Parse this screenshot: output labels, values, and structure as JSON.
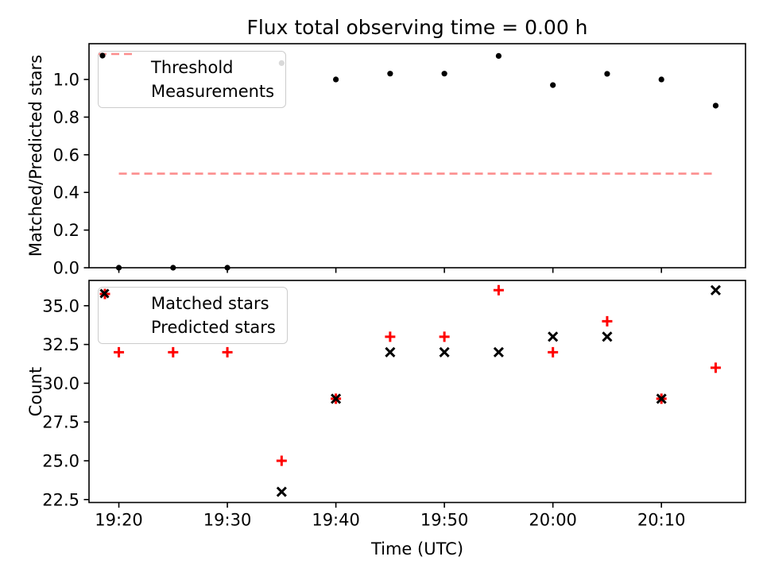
{
  "figure": {
    "background": "#ffffff",
    "accent_red": "#ff0000",
    "threshold_color": "#fc8d8d",
    "marker_black": "#000000"
  },
  "chart_data": [
    {
      "type": "scatter",
      "title": "Flux total observing time = 0.00 h",
      "xlabel": "",
      "ylabel": "Matched/Predicted stars",
      "x_tick_labels": [
        "19:20",
        "19:30",
        "19:40",
        "19:50",
        "20:00",
        "20:10"
      ],
      "x_tick_labels_visible": false,
      "y_tick_labels": [
        "0.0",
        "0.2",
        "0.4",
        "0.6",
        "0.8",
        "1.0"
      ],
      "xlim_minutes": [
        1157.25,
        1217.75
      ],
      "ylim": [
        0,
        1.19
      ],
      "grid": false,
      "legend": {
        "position": "upper left",
        "entries": [
          {
            "label": "Threshold",
            "marker": "dashed-line",
            "color": "#fc8d8d"
          },
          {
            "label": "Measurements",
            "marker": "dot",
            "color": "#000000"
          }
        ]
      },
      "series": [
        {
          "name": "Threshold",
          "style": "hline-dashed",
          "color": "#fc8d8d",
          "y": 0.5,
          "x_start": "19:20",
          "x_end": "20:15"
        },
        {
          "name": "Measurements",
          "style": "dot",
          "color": "#000000",
          "x": [
            "19:20",
            "19:25",
            "19:30",
            "19:35",
            "19:40",
            "19:45",
            "19:50",
            "19:55",
            "20:00",
            "20:05",
            "20:10",
            "20:15"
          ],
          "y": [
            0,
            0,
            0,
            1.087,
            1.0,
            1.031,
            1.031,
            1.125,
            0.97,
            1.03,
            1.0,
            0.861
          ]
        }
      ]
    },
    {
      "type": "scatter",
      "title": "",
      "xlabel": "Time (UTC)",
      "ylabel": "Count",
      "x_tick_labels": [
        "19:20",
        "19:30",
        "19:40",
        "19:50",
        "20:00",
        "20:10"
      ],
      "x_tick_labels_visible": true,
      "y_tick_labels": [
        "22.5",
        "25.0",
        "27.5",
        "30.0",
        "32.5",
        "35.0"
      ],
      "xlim_minutes": [
        1157.25,
        1217.75
      ],
      "ylim": [
        22.31,
        36.63
      ],
      "grid": false,
      "legend": {
        "position": "upper left",
        "entries": [
          {
            "label": "Matched stars",
            "marker": "plus",
            "color": "#ff0000"
          },
          {
            "label": "Predicted stars",
            "marker": "cross",
            "color": "#000000"
          }
        ]
      },
      "series": [
        {
          "name": "Matched stars",
          "style": "plus",
          "color": "#ff0000",
          "x": [
            "19:20",
            "19:25",
            "19:30",
            "19:35",
            "19:40",
            "19:45",
            "19:50",
            "19:55",
            "20:00",
            "20:05",
            "20:10",
            "20:15"
          ],
          "y": [
            32,
            32,
            32,
            25,
            29,
            33,
            33,
            36,
            32,
            34,
            29,
            31
          ]
        },
        {
          "name": "Predicted stars",
          "style": "cross",
          "color": "#000000",
          "x": [
            "19:35",
            "19:40",
            "19:45",
            "19:50",
            "19:55",
            "20:00",
            "20:05",
            "20:10",
            "20:15"
          ],
          "y": [
            23,
            29,
            32,
            32,
            32,
            33,
            33,
            29,
            36
          ]
        }
      ]
    }
  ]
}
